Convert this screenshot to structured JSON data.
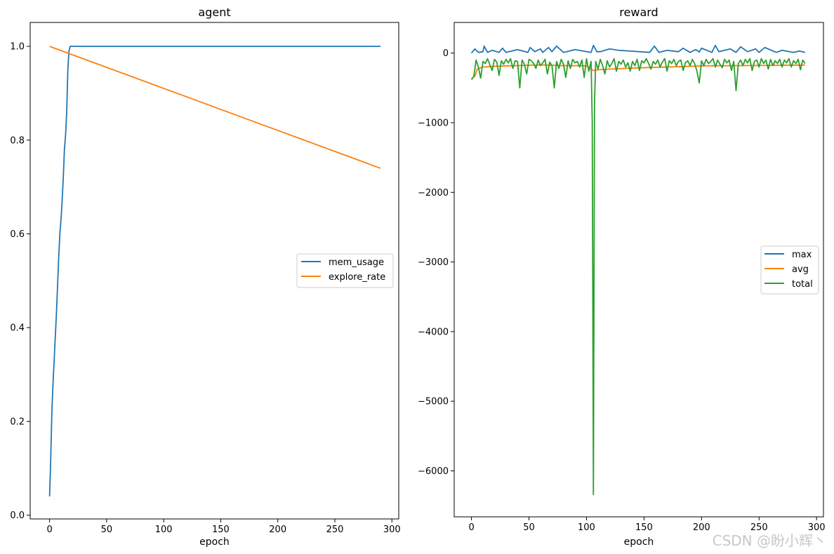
{
  "watermark": "CSDN @盼小辉丶",
  "chart_data": [
    {
      "type": "line",
      "title": "agent",
      "xlabel": "epoch",
      "ylabel": "",
      "xlim": [
        -17,
        306
      ],
      "ylim": [
        -0.008,
        1.051
      ],
      "xticks": [
        0,
        50,
        100,
        150,
        200,
        250,
        300
      ],
      "yticks": [
        0.0,
        0.2,
        0.4,
        0.6,
        0.8,
        1.0
      ],
      "ytick_labels": [
        "0.0",
        "0.2",
        "0.4",
        "0.6",
        "0.8",
        "1.0"
      ],
      "grid": false,
      "legend_position": "center-right",
      "series": [
        {
          "name": "mem_usage",
          "color": "#1f77b4",
          "x": [
            0,
            1,
            2,
            3,
            4,
            5,
            6,
            7,
            8,
            9,
            10,
            11,
            12,
            13,
            14,
            15,
            16,
            17,
            18,
            19,
            20,
            21,
            25,
            50,
            100,
            150,
            200,
            250,
            290
          ],
          "y": [
            0.04,
            0.12,
            0.22,
            0.28,
            0.33,
            0.38,
            0.43,
            0.49,
            0.55,
            0.6,
            0.63,
            0.67,
            0.72,
            0.78,
            0.81,
            0.86,
            0.95,
            0.99,
            1.0,
            1.0,
            1.0,
            1.0,
            1.0,
            1.0,
            1.0,
            1.0,
            1.0,
            1.0,
            1.0
          ]
        },
        {
          "name": "explore_rate",
          "color": "#ff7f0e",
          "x": [
            0,
            290
          ],
          "y": [
            1.0,
            0.74
          ]
        }
      ]
    },
    {
      "type": "line",
      "title": "reward",
      "xlabel": "epoch",
      "ylabel": "",
      "xlim": [
        -15,
        306
      ],
      "ylim": [
        -6660,
        440
      ],
      "xticks": [
        0,
        50,
        100,
        150,
        200,
        250,
        300
      ],
      "yticks": [
        0,
        -1000,
        -2000,
        -3000,
        -4000,
        -5000,
        -6000
      ],
      "ytick_labels": [
        "0",
        "−1000",
        "−2000",
        "−3000",
        "−4000",
        "−5000",
        "−6000"
      ],
      "grid": false,
      "legend_position": "center-right",
      "series": [
        {
          "name": "max",
          "color": "#1f77b4",
          "x": [
            0,
            3,
            6,
            10,
            11,
            14,
            18,
            24,
            27,
            30,
            40,
            49,
            51,
            55,
            60,
            62,
            67,
            70,
            74,
            80,
            90,
            104,
            106,
            109,
            112,
            120,
            128,
            155,
            159,
            163,
            170,
            180,
            184,
            190,
            195,
            198,
            200,
            209,
            212,
            215,
            225,
            230,
            234,
            240,
            247,
            250,
            255,
            265,
            270,
            280,
            285,
            290
          ],
          "y": [
            0,
            60,
            10,
            20,
            100,
            10,
            40,
            10,
            70,
            10,
            50,
            10,
            80,
            20,
            60,
            10,
            80,
            20,
            100,
            10,
            50,
            10,
            110,
            20,
            20,
            60,
            40,
            10,
            100,
            10,
            40,
            20,
            70,
            10,
            50,
            15,
            70,
            10,
            110,
            20,
            60,
            10,
            90,
            20,
            60,
            10,
            80,
            10,
            40,
            10,
            30,
            10
          ]
        },
        {
          "name": "avg",
          "color": "#ff7f0e",
          "x": [
            0,
            3,
            5,
            10,
            20,
            30,
            40,
            50,
            60,
            70,
            80,
            90,
            100,
            106,
            110,
            120,
            140,
            160,
            180,
            200,
            230,
            250,
            270,
            290
          ],
          "y": [
            -370,
            -330,
            -230,
            -200,
            -190,
            -185,
            -180,
            -175,
            -170,
            -175,
            -180,
            -180,
            -185,
            -250,
            -240,
            -230,
            -215,
            -205,
            -195,
            -185,
            -180,
            -178,
            -175,
            -172
          ]
        },
        {
          "name": "total",
          "color": "#2ca02c",
          "x": [
            0,
            2,
            4,
            6,
            8,
            10,
            12,
            14,
            16,
            18,
            20,
            22,
            24,
            26,
            28,
            30,
            32,
            34,
            36,
            38,
            40,
            42,
            44,
            46,
            48,
            50,
            52,
            54,
            56,
            58,
            60,
            62,
            64,
            66,
            68,
            70,
            72,
            74,
            76,
            78,
            80,
            82,
            84,
            86,
            88,
            90,
            92,
            94,
            96,
            98,
            100,
            102,
            104,
            105,
            106,
            107,
            108,
            110,
            112,
            114,
            116,
            118,
            120,
            122,
            124,
            126,
            128,
            130,
            132,
            134,
            136,
            138,
            140,
            142,
            144,
            146,
            148,
            150,
            152,
            154,
            156,
            158,
            160,
            162,
            164,
            166,
            168,
            170,
            172,
            174,
            176,
            178,
            180,
            182,
            184,
            186,
            188,
            190,
            192,
            194,
            196,
            198,
            200,
            202,
            204,
            206,
            208,
            210,
            212,
            214,
            216,
            218,
            220,
            222,
            224,
            226,
            228,
            230,
            232,
            234,
            236,
            238,
            240,
            242,
            244,
            246,
            248,
            250,
            252,
            254,
            256,
            258,
            260,
            262,
            264,
            266,
            268,
            270,
            272,
            274,
            276,
            278,
            280,
            282,
            284,
            286,
            288,
            290
          ],
          "y": [
            -380,
            -340,
            -100,
            -200,
            -360,
            -120,
            -150,
            -80,
            -170,
            -250,
            -90,
            -130,
            -320,
            -110,
            -160,
            -90,
            -140,
            -80,
            -220,
            -110,
            -120,
            -500,
            -100,
            -160,
            -300,
            -90,
            -110,
            -150,
            -220,
            -100,
            -180,
            -140,
            -90,
            -300,
            -130,
            -180,
            -500,
            -120,
            -220,
            -90,
            -160,
            -350,
            -110,
            -220,
            -90,
            -140,
            -120,
            -200,
            -100,
            -350,
            -80,
            -260,
            -120,
            -1000,
            -6340,
            -700,
            -120,
            -230,
            -90,
            -180,
            -300,
            -110,
            -200,
            -150,
            -80,
            -260,
            -120,
            -160,
            -100,
            -200,
            -140,
            -260,
            -120,
            -180,
            -90,
            -250,
            -110,
            -140,
            -80,
            -150,
            -230,
            -120,
            -160,
            -100,
            -200,
            -130,
            -80,
            -260,
            -110,
            -150,
            -90,
            -180,
            -120,
            -100,
            -250,
            -140,
            -110,
            -180,
            -90,
            -150,
            -260,
            -430,
            -110,
            -180,
            -90,
            -150,
            -120,
            -80,
            -200,
            -100,
            -160,
            -210,
            -90,
            -140,
            -100,
            -250,
            -120,
            -540,
            -150,
            -100,
            -180,
            -90,
            -140,
            -80,
            -250,
            -120,
            -100,
            -200,
            -80,
            -150,
            -100,
            -230,
            -90,
            -180,
            -110,
            -150,
            -90,
            -200,
            -100,
            -140,
            -80,
            -200,
            -110,
            -150,
            -90,
            -240,
            -100,
            -150
          ]
        }
      ]
    }
  ]
}
